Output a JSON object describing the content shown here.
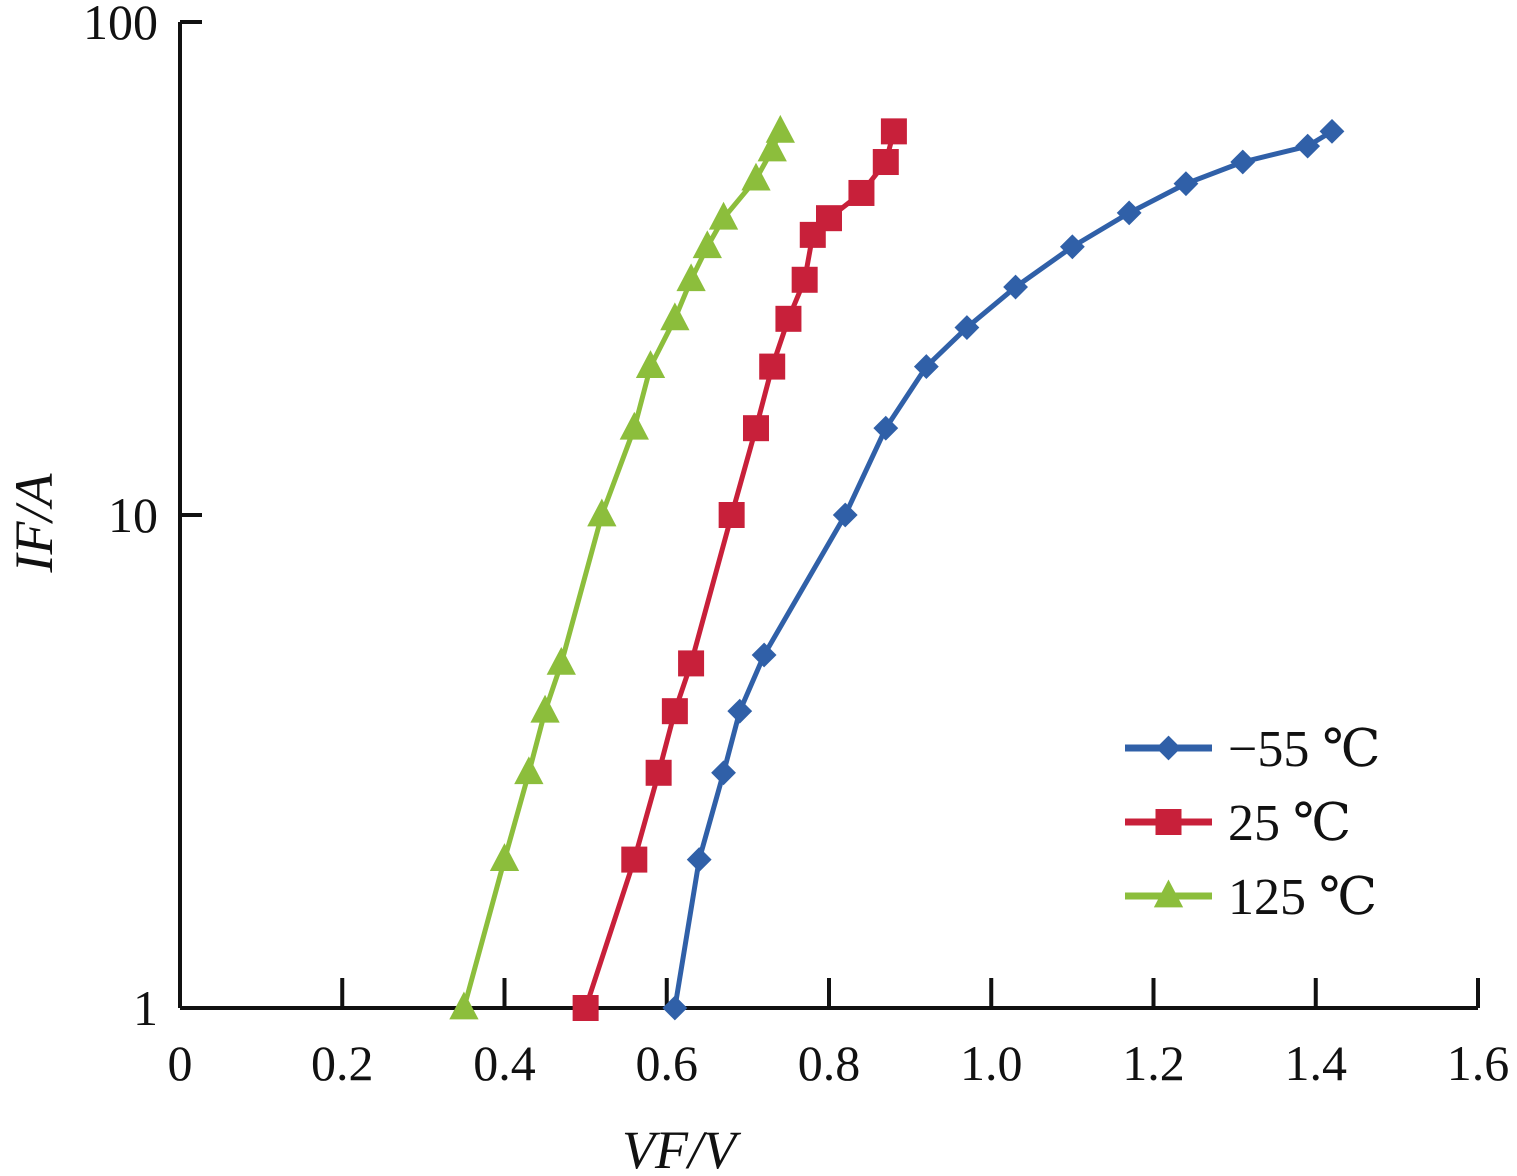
{
  "chart_data": {
    "type": "line",
    "xlabel": "VF/V",
    "ylabel": "IF/A",
    "xlim": [
      0,
      1.6
    ],
    "ylim": [
      1,
      100
    ],
    "y_scale": "log",
    "x_ticks": [
      "0",
      "0.2",
      "0.4",
      "0.6",
      "0.8",
      "1.0",
      "1.2",
      "1.4",
      "1.6"
    ],
    "y_ticks": [
      "1",
      "10",
      "100"
    ],
    "grid": false,
    "legend_position": "bottom-right",
    "series": [
      {
        "name": "−55 ℃",
        "color": "#3060a8",
        "marker": "diamond",
        "x": [
          0.61,
          0.64,
          0.67,
          0.69,
          0.72,
          0.82,
          0.87,
          0.92,
          0.97,
          1.03,
          1.1,
          1.17,
          1.24,
          1.31,
          1.39,
          1.42
        ],
        "y": [
          1.0,
          2.0,
          3.0,
          4.0,
          5.2,
          10.0,
          15.0,
          20.0,
          24.0,
          29.0,
          35.0,
          41.0,
          47.0,
          52.0,
          56.0,
          60.0
        ]
      },
      {
        "name": "25 ℃",
        "color": "#c8203a",
        "marker": "square",
        "x": [
          0.5,
          0.56,
          0.59,
          0.61,
          0.63,
          0.68,
          0.71,
          0.73,
          0.75,
          0.77,
          0.78,
          0.8,
          0.84,
          0.87,
          0.88
        ],
        "y": [
          1.0,
          2.0,
          3.0,
          4.0,
          5.0,
          10.0,
          15.0,
          20.0,
          25.0,
          30.0,
          37.0,
          40.0,
          45.0,
          52.0,
          60.0
        ]
      },
      {
        "name": "125 ℃",
        "color": "#8cbe3c",
        "marker": "triangle",
        "x": [
          0.35,
          0.4,
          0.43,
          0.45,
          0.47,
          0.52,
          0.56,
          0.58,
          0.61,
          0.63,
          0.65,
          0.67,
          0.71,
          0.73,
          0.74
        ],
        "y": [
          1.0,
          2.0,
          3.0,
          4.0,
          5.0,
          10.0,
          15.0,
          20.0,
          25.0,
          30.0,
          35.0,
          40.0,
          48.0,
          55.0,
          60.0
        ]
      }
    ]
  }
}
